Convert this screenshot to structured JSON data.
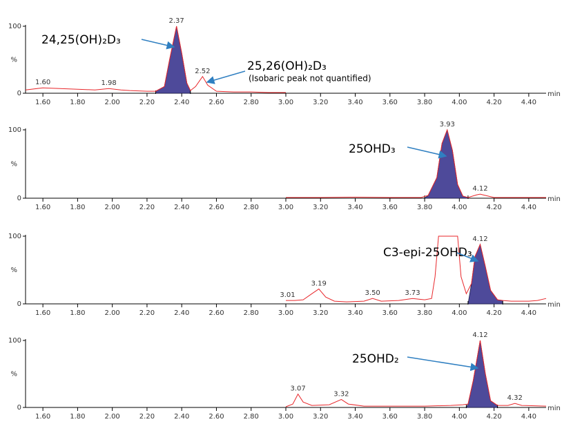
{
  "chart_data": [
    {
      "type": "line",
      "xlim": [
        1.5,
        4.5
      ],
      "ylim": [
        0,
        100
      ],
      "yticks": [
        0,
        100
      ],
      "ylabel": "%",
      "xunit": "min",
      "xticks": [
        {
          "value": 1.6,
          "label": "1.60"
        },
        {
          "value": 1.8,
          "label": "1.80"
        },
        {
          "value": 2,
          "label": "2.00"
        },
        {
          "value": 2.2,
          "label": "2.20"
        },
        {
          "value": 2.4,
          "label": "2.40"
        },
        {
          "value": 2.6,
          "label": "2.60"
        },
        {
          "value": 2.8,
          "label": "2.80"
        },
        {
          "value": 3,
          "label": "3.00"
        },
        {
          "value": 3.2,
          "label": "3.20"
        },
        {
          "value": 3.4,
          "label": "3.40"
        },
        {
          "value": 3.6,
          "label": "3.60"
        },
        {
          "value": 3.8,
          "label": "3.80"
        },
        {
          "value": 4,
          "label": "4.00"
        },
        {
          "value": 4.2,
          "label": "4.20"
        },
        {
          "value": 4.4,
          "label": "4.40"
        }
      ],
      "x": [
        1.5,
        1.6,
        1.7,
        1.8,
        1.9,
        1.98,
        2.05,
        2.1,
        2.2,
        2.25,
        2.3,
        2.33,
        2.37,
        2.4,
        2.43,
        2.45,
        2.48,
        2.52,
        2.55,
        2.6,
        2.7,
        2.8,
        2.9,
        3.0
      ],
      "series": [
        {
          "color": "#e8262a",
          "values": [
            5,
            8,
            7,
            6,
            5,
            7,
            5,
            4,
            3,
            3,
            10,
            50,
            100,
            60,
            15,
            4,
            10,
            25,
            12,
            3,
            2,
            2,
            1,
            1
          ]
        }
      ],
      "integrated": [
        [
          2.25,
          2.45
        ]
      ],
      "fill": "#4e4a9a",
      "peaks": [
        {
          "x": 1.6,
          "y": 8,
          "label": "1.60"
        },
        {
          "x": 1.98,
          "y": 7,
          "label": "1.98"
        },
        {
          "x": 2.37,
          "y": 100,
          "label": "2.37"
        },
        {
          "x": 2.52,
          "y": 25,
          "label": "2.52"
        }
      ],
      "annotations": [
        "24,25(OH)₂D₃",
        "25,26(OH)₂D₃",
        "(Isobaric peak not quantified)"
      ]
    },
    {
      "type": "line",
      "xlim": [
        1.5,
        4.5
      ],
      "ylim": [
        0,
        100
      ],
      "yticks": [
        0,
        100
      ],
      "ylabel": "%",
      "xunit": "min",
      "xticks": [
        {
          "value": 1.6,
          "label": "1.60"
        },
        {
          "value": 1.8,
          "label": "1.80"
        },
        {
          "value": 2,
          "label": "2.00"
        },
        {
          "value": 2.2,
          "label": "2.20"
        },
        {
          "value": 2.4,
          "label": "2.40"
        },
        {
          "value": 2.6,
          "label": "2.60"
        },
        {
          "value": 2.8,
          "label": "2.80"
        },
        {
          "value": 3,
          "label": "3.00"
        },
        {
          "value": 3.2,
          "label": "3.20"
        },
        {
          "value": 3.4,
          "label": "3.40"
        },
        {
          "value": 3.6,
          "label": "3.60"
        },
        {
          "value": 3.8,
          "label": "3.80"
        },
        {
          "value": 4,
          "label": "4.00"
        },
        {
          "value": 4.2,
          "label": "4.20"
        },
        {
          "value": 4.4,
          "label": "4.40"
        }
      ],
      "x": [
        3.0,
        3.2,
        3.4,
        3.6,
        3.78,
        3.82,
        3.87,
        3.9,
        3.93,
        3.96,
        3.99,
        4.02,
        4.05,
        4.1,
        4.12,
        4.15,
        4.2,
        4.4,
        4.5
      ],
      "series": [
        {
          "color": "#e8262a",
          "values": [
            1,
            1,
            1.5,
            1,
            1,
            4,
            30,
            80,
            100,
            70,
            20,
            3,
            1,
            5,
            6,
            4,
            1,
            1,
            1
          ]
        }
      ],
      "integrated": [
        [
          3.8,
          4.05
        ]
      ],
      "fill": "#4e4a9a",
      "peaks": [
        {
          "x": 3.93,
          "y": 100,
          "label": "3.93"
        },
        {
          "x": 4.12,
          "y": 6,
          "label": "4.12"
        }
      ],
      "annotations": [
        "25OHD₃"
      ]
    },
    {
      "type": "line",
      "xlim": [
        1.5,
        4.5
      ],
      "ylim": [
        0,
        100
      ],
      "yticks": [
        0,
        100
      ],
      "ylabel": "%",
      "xunit": "min",
      "xticks": [
        {
          "value": 1.6,
          "label": "1.60"
        },
        {
          "value": 1.8,
          "label": "1.80"
        },
        {
          "value": 2,
          "label": "2.00"
        },
        {
          "value": 2.2,
          "label": "2.20"
        },
        {
          "value": 2.4,
          "label": "2.40"
        },
        {
          "value": 2.6,
          "label": "2.60"
        },
        {
          "value": 2.8,
          "label": "2.80"
        },
        {
          "value": 3,
          "label": "3.00"
        },
        {
          "value": 3.2,
          "label": "3.20"
        },
        {
          "value": 3.4,
          "label": "3.40"
        },
        {
          "value": 3.6,
          "label": "3.60"
        },
        {
          "value": 3.8,
          "label": "3.80"
        },
        {
          "value": 4,
          "label": "4.00"
        },
        {
          "value": 4.2,
          "label": "4.20"
        },
        {
          "value": 4.4,
          "label": "4.40"
        }
      ],
      "x": [
        3.0,
        3.05,
        3.1,
        3.15,
        3.19,
        3.23,
        3.28,
        3.35,
        3.45,
        3.5,
        3.55,
        3.65,
        3.73,
        3.8,
        3.84,
        3.86,
        3.88,
        3.99,
        4.01,
        4.04,
        4.07,
        4.09,
        4.12,
        4.15,
        4.18,
        4.22,
        4.25,
        4.3,
        4.4,
        4.45,
        4.5
      ],
      "series": [
        {
          "color": "#e8262a",
          "values": [
            5,
            5,
            6,
            15,
            22,
            10,
            4,
            3,
            4,
            8,
            4,
            5,
            8,
            6,
            8,
            40,
            100,
            100,
            40,
            15,
            30,
            70,
            88,
            55,
            20,
            6,
            5,
            4,
            4,
            5,
            8
          ]
        }
      ],
      "integrated": [
        [
          4.05,
          4.25
        ]
      ],
      "fill": "#4e4a9a",
      "peaks": [
        {
          "x": 3.01,
          "y": 5,
          "label": "3.01"
        },
        {
          "x": 3.19,
          "y": 22,
          "label": "3.19"
        },
        {
          "x": 3.5,
          "y": 8,
          "label": "3.50"
        },
        {
          "x": 3.73,
          "y": 8,
          "label": "3.73"
        },
        {
          "x": 4.12,
          "y": 88,
          "label": "4.12"
        }
      ],
      "annotations": [
        "C3-epi-25OHD₃"
      ]
    },
    {
      "type": "line",
      "xlim": [
        1.5,
        4.5
      ],
      "ylim": [
        0,
        100
      ],
      "yticks": [
        0,
        100
      ],
      "ylabel": "%",
      "xunit": "min",
      "xticks": [
        {
          "value": 1.6,
          "label": "1.60"
        },
        {
          "value": 1.8,
          "label": "1.80"
        },
        {
          "value": 2,
          "label": "2.00"
        },
        {
          "value": 2.2,
          "label": "2.20"
        },
        {
          "value": 2.4,
          "label": "2.40"
        },
        {
          "value": 2.6,
          "label": "2.60"
        },
        {
          "value": 2.8,
          "label": "2.80"
        },
        {
          "value": 3,
          "label": "3.00"
        },
        {
          "value": 3.2,
          "label": "3.20"
        },
        {
          "value": 3.4,
          "label": "3.40"
        },
        {
          "value": 3.6,
          "label": "3.60"
        },
        {
          "value": 3.8,
          "label": "3.80"
        },
        {
          "value": 4,
          "label": "4.00"
        },
        {
          "value": 4.2,
          "label": "4.20"
        },
        {
          "value": 4.4,
          "label": "4.40"
        }
      ],
      "x": [
        3.0,
        3.04,
        3.07,
        3.1,
        3.15,
        3.25,
        3.32,
        3.36,
        3.45,
        3.6,
        3.8,
        3.95,
        4.02,
        4.05,
        4.08,
        4.12,
        4.15,
        4.18,
        4.22,
        4.28,
        4.32,
        4.36,
        4.5
      ],
      "series": [
        {
          "color": "#e8262a",
          "values": [
            1,
            5,
            20,
            8,
            3,
            4,
            12,
            5,
            2,
            2,
            2,
            3,
            4,
            5,
            40,
            100,
            50,
            10,
            3,
            3,
            6,
            3,
            2
          ]
        }
      ],
      "integrated": [
        [
          4.04,
          4.22
        ]
      ],
      "fill": "#4e4a9a",
      "peaks": [
        {
          "x": 3.07,
          "y": 20,
          "label": "3.07"
        },
        {
          "x": 3.32,
          "y": 12,
          "label": "3.32"
        },
        {
          "x": 4.12,
          "y": 100,
          "label": "4.12"
        },
        {
          "x": 4.32,
          "y": 6,
          "label": "4.32"
        }
      ],
      "annotations": [
        "25OHD₂"
      ]
    }
  ]
}
